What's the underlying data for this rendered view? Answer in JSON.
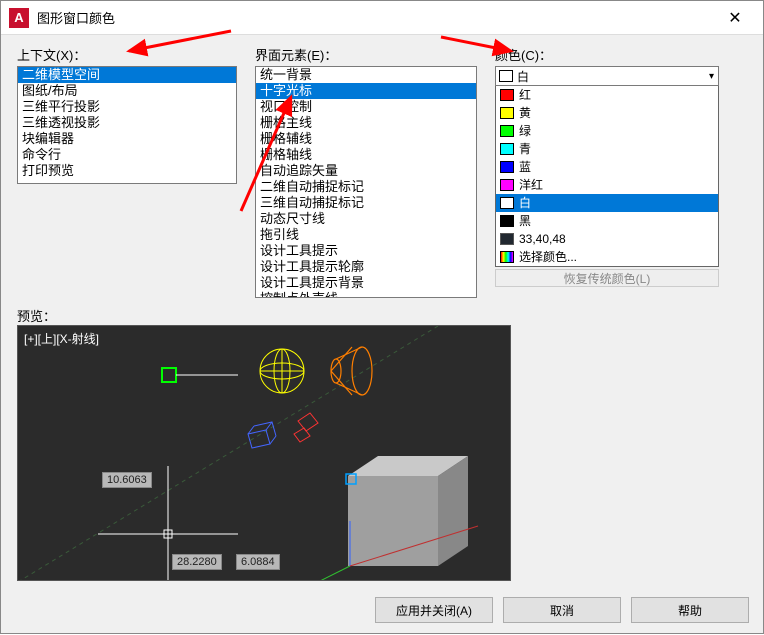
{
  "window": {
    "title": "图形窗口颜色",
    "logo_letter": "A",
    "close_glyph": "✕"
  },
  "labels": {
    "context": "上下文(X)：",
    "element": "界面元素(E)：",
    "color": "颜色(C)：",
    "preview": "预览："
  },
  "context_list": {
    "items": [
      "二维模型空间",
      "图纸/布局",
      "三维平行投影",
      "三维透视投影",
      "块编辑器",
      "命令行",
      "打印预览"
    ],
    "selected_index": 0
  },
  "element_list": {
    "items": [
      "统一背景",
      "十字光标",
      "视口控制",
      "栅格主线",
      "栅格辅线",
      "栅格轴线",
      "自动追踪矢量",
      "二维自动捕捉标记",
      "三维自动捕捉标记",
      "动态尺寸线",
      "拖引线",
      "设计工具提示",
      "设计工具提示轮廓",
      "设计工具提示背景",
      "控制点外壳线"
    ],
    "selected_index": 1
  },
  "color_combo": {
    "selected_label": "白",
    "selected_swatch": "#ffffff"
  },
  "color_dropdown": {
    "items": [
      {
        "label": "红",
        "color": "#ff0000",
        "border": "#000000"
      },
      {
        "label": "黄",
        "color": "#ffff00",
        "border": "#000000"
      },
      {
        "label": "绿",
        "color": "#00ff00",
        "border": "#000000"
      },
      {
        "label": "青",
        "color": "#00ffff",
        "border": "#000000"
      },
      {
        "label": "蓝",
        "color": "#0000ff",
        "border": "#000000"
      },
      {
        "label": "洋红",
        "color": "#ff00ff",
        "border": "#000000"
      },
      {
        "label": "白",
        "color": "#ffffff",
        "border": "#000000",
        "selected": true
      },
      {
        "label": "黑",
        "color": "#000000",
        "border": "#000000"
      },
      {
        "label": "33,40,48",
        "color": "#212830",
        "border": "#555555"
      },
      {
        "label": "选择颜色...",
        "color": "rainbow",
        "border": "#000000"
      }
    ]
  },
  "restore_button": "恢复传统颜色(L)",
  "preview": {
    "caption": "[+][上][X-射线]",
    "background": "#2b2b2b",
    "dim1": "10.6063",
    "dim2": "28.2280",
    "dim3": "6.0884"
  },
  "buttons": {
    "apply_close": "应用并关闭(A)",
    "cancel": "取消",
    "help": "帮助"
  },
  "arrows": {
    "color": "#ff0000",
    "stroke_width": 3
  }
}
